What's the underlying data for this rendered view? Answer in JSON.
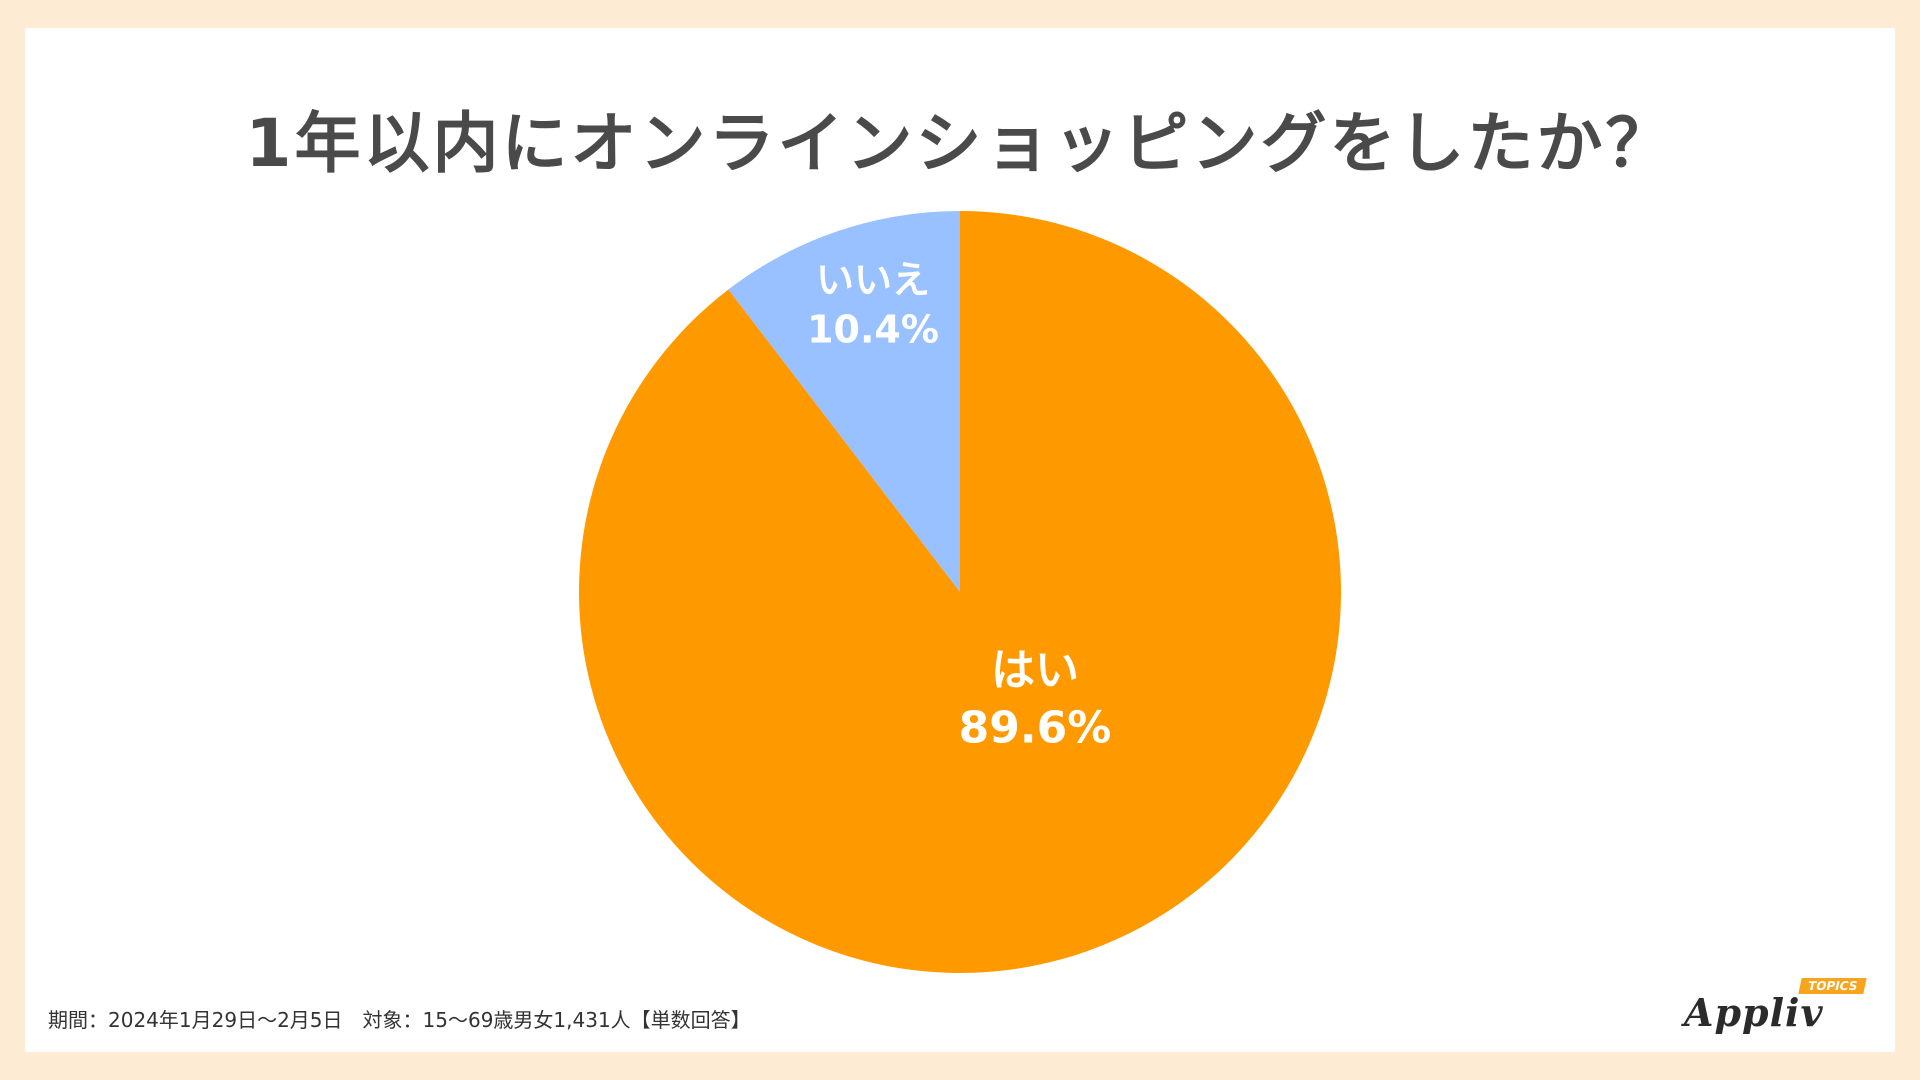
{
  "colors": {
    "page_background": "#fdebd3",
    "card_background": "#ffffff",
    "title_text": "#4a4a4a"
  },
  "chart_data": {
    "type": "pie",
    "title": "1年以内にオンラインショッピングをしたか？",
    "slices": [
      {
        "label": "はい",
        "value": 89.6,
        "value_label": "89.6%",
        "color": "#ff9900"
      },
      {
        "label": "いいえ",
        "value": 10.4,
        "value_label": "10.4%",
        "color": "#99c1ff"
      }
    ],
    "start": "12 o'clock",
    "direction": "clockwise",
    "legend": "none"
  },
  "footnote": "期間：2024年1月29日〜2月5日　対象：15〜69歳男女1,431人【単数回答】",
  "logo": {
    "name": "Appliv",
    "badge": "TOPICS"
  }
}
